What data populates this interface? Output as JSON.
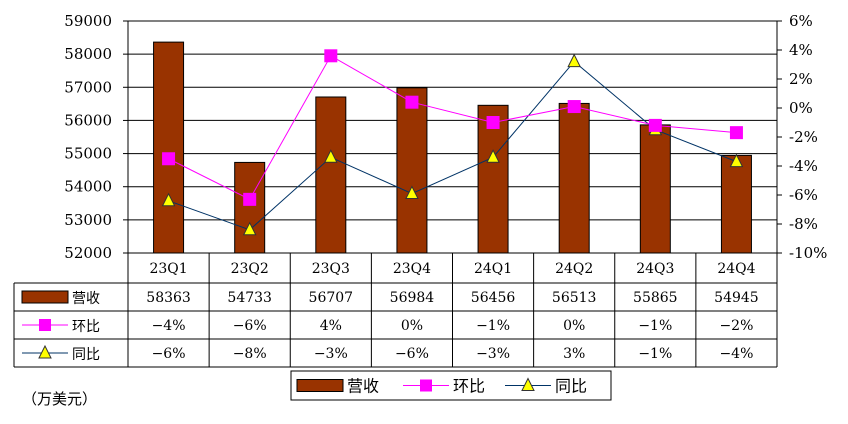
{
  "chart_data": {
    "type": "bar+line",
    "unit": "（万美元）",
    "categories": [
      "23Q1",
      "23Q2",
      "23Q3",
      "23Q4",
      "24Q1",
      "24Q2",
      "24Q3",
      "24Q4"
    ],
    "left_axis": {
      "ylim": [
        52000,
        59000
      ],
      "ticks": [
        "52000",
        "53000",
        "54000",
        "55000",
        "56000",
        "57000",
        "58000",
        "59000"
      ],
      "tick_values": [
        52000,
        53000,
        54000,
        55000,
        56000,
        57000,
        58000,
        59000
      ]
    },
    "right_axis": {
      "ylim": [
        -10,
        6
      ],
      "ticks": [
        "-10%",
        "-8%",
        "-6%",
        "-4%",
        "-2%",
        "0%",
        "2%",
        "4%",
        "6%"
      ],
      "tick_values": [
        -10,
        -8,
        -6,
        -4,
        -2,
        0,
        2,
        4,
        6
      ]
    },
    "series": [
      {
        "name": "营收",
        "kind": "bar",
        "axis": "left",
        "color": "#993300",
        "values": [
          58363,
          54733,
          56707,
          56984,
          56456,
          56513,
          55865,
          54945
        ],
        "labels": [
          "58363",
          "54733",
          "56707",
          "56984",
          "56456",
          "56513",
          "55865",
          "54945"
        ]
      },
      {
        "name": "环比",
        "kind": "line",
        "marker": "square",
        "axis": "right",
        "color": "#ff00ff",
        "values": [
          -3.5,
          -6.3,
          3.6,
          0.4,
          -1.0,
          0.1,
          -1.2,
          -1.7
        ],
        "labels": [
          "−4%",
          "−6%",
          "4%",
          "0%",
          "−1%",
          "0%",
          "−1%",
          "−2%"
        ]
      },
      {
        "name": "同比",
        "kind": "line",
        "marker": "triangle",
        "axis": "right",
        "color": "#003366",
        "marker_color": "#ffff00",
        "values": [
          -6.4,
          -8.4,
          -3.4,
          -5.9,
          -3.4,
          3.2,
          -1.5,
          -3.7
        ],
        "labels": [
          "−6%",
          "−8%",
          "−3%",
          "−6%",
          "−3%",
          "3%",
          "−1%",
          "−4%"
        ]
      }
    ],
    "legend": [
      "营收",
      "环比",
      "同比"
    ],
    "grid": true
  }
}
